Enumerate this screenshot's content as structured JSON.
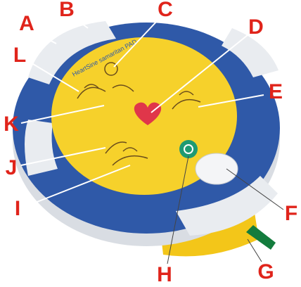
{
  "device_text": "HeartSine samaritan PAD",
  "labels": [
    {
      "letter": "A"
    },
    {
      "letter": "B"
    },
    {
      "letter": "C"
    },
    {
      "letter": "D"
    },
    {
      "letter": "E"
    },
    {
      "letter": "F"
    },
    {
      "letter": "G"
    },
    {
      "letter": "H"
    },
    {
      "letter": "I"
    },
    {
      "letter": "J"
    },
    {
      "letter": "K"
    },
    {
      "letter": "L"
    }
  ]
}
